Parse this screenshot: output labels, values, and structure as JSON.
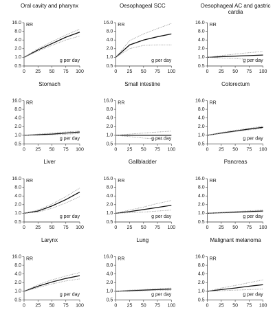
{
  "chart_data": [
    {
      "type": "line",
      "title": "Oral cavity and pharynx",
      "ylabel": "RR",
      "xlabel": "g per day",
      "yscale": "log",
      "x": [
        0,
        25,
        50,
        75,
        100
      ],
      "xlim": [
        0,
        100
      ],
      "xticks": [
        0,
        25,
        50,
        75,
        100
      ],
      "ylim": [
        0.5,
        16
      ],
      "yticks": [
        0.5,
        {
          "value": 1,
          "label": "1.0"
        },
        {
          "value": 2,
          "label": "2.0"
        },
        {
          "value": 4,
          "label": "4.0"
        },
        {
          "value": 8,
          "label": "8.0"
        },
        {
          "value": 16,
          "label": "16.0"
        }
      ],
      "series": [
        {
          "color": "#111111",
          "dash": "solid",
          "values": [
            1,
            1.8,
            3.0,
            5.0,
            7.5
          ]
        },
        {
          "color": "#999999",
          "dash": "dotted",
          "values": [
            1,
            1.65,
            2.6,
            4.0,
            5.5
          ]
        },
        {
          "color": "#999999",
          "dash": "dotted",
          "values": [
            1,
            2.0,
            3.5,
            6.0,
            9.5
          ]
        }
      ]
    },
    {
      "type": "line",
      "title": "Oesophageal SCC",
      "ylabel": "RR",
      "xlabel": "g per day",
      "yscale": "log",
      "x": [
        0,
        25,
        50,
        75,
        100
      ],
      "xlim": [
        0,
        100
      ],
      "xticks": [
        0,
        25,
        50,
        75,
        100
      ],
      "ylim": [
        0.5,
        16
      ],
      "yticks": [
        0.5,
        {
          "value": 1,
          "label": "1.0"
        },
        {
          "value": 2,
          "label": "2.0"
        },
        {
          "value": 4,
          "label": "4.0"
        },
        {
          "value": 8,
          "label": "8.0"
        },
        {
          "value": 16,
          "label": "16.0"
        }
      ],
      "series": [
        {
          "color": "#111111",
          "dash": "solid",
          "values": [
            1,
            2.7,
            4.0,
            5.2,
            6.5
          ]
        },
        {
          "color": "#999999",
          "dash": "dotted",
          "values": [
            1,
            2.0,
            2.6,
            2.7,
            2.7
          ]
        },
        {
          "color": "#999999",
          "dash": "dotted",
          "values": [
            1,
            3.8,
            6.5,
            10,
            15
          ]
        }
      ]
    },
    {
      "type": "line",
      "title": "Oesophageal AC and gastric cardia",
      "ylabel": "RR",
      "xlabel": "g per day",
      "yscale": "log",
      "x": [
        0,
        25,
        50,
        75,
        100
      ],
      "xlim": [
        0,
        100
      ],
      "xticks": [
        0,
        25,
        50,
        75,
        100
      ],
      "ylim": [
        0.5,
        16
      ],
      "yticks": [
        0.5,
        {
          "value": 1,
          "label": "1.0"
        },
        {
          "value": 2,
          "label": "2.0"
        },
        {
          "value": 4,
          "label": "4.0"
        },
        {
          "value": 8,
          "label": "8.0"
        },
        {
          "value": 16,
          "label": "16.0"
        }
      ],
      "series": [
        {
          "color": "#111111",
          "dash": "solid",
          "values": [
            1,
            1.05,
            1.1,
            1.15,
            1.2
          ]
        },
        {
          "color": "#999999",
          "dash": "dotted",
          "values": [
            1,
            0.95,
            0.9,
            0.85,
            0.8
          ]
        },
        {
          "color": "#999999",
          "dash": "dotted",
          "values": [
            1,
            1.15,
            1.3,
            1.45,
            1.6
          ]
        }
      ]
    },
    {
      "type": "line",
      "title": "Stomach",
      "ylabel": "RR",
      "xlabel": "g per day",
      "yscale": "log",
      "x": [
        0,
        25,
        50,
        75,
        100
      ],
      "xlim": [
        0,
        100
      ],
      "xticks": [
        0,
        25,
        50,
        75,
        100
      ],
      "ylim": [
        0.5,
        16
      ],
      "yticks": [
        0.5,
        {
          "value": 1,
          "label": "1.0"
        },
        {
          "value": 2,
          "label": "2.0"
        },
        {
          "value": 4,
          "label": "4.0"
        },
        {
          "value": 8,
          "label": "8.0"
        },
        {
          "value": 16,
          "label": "16.0"
        }
      ],
      "series": [
        {
          "color": "#111111",
          "dash": "solid",
          "values": [
            1,
            1.05,
            1.1,
            1.2,
            1.3
          ]
        },
        {
          "color": "#999999",
          "dash": "dotted",
          "values": [
            1,
            1.0,
            1.05,
            1.1,
            1.15
          ]
        },
        {
          "color": "#999999",
          "dash": "dotted",
          "values": [
            1,
            1.1,
            1.2,
            1.3,
            1.4
          ]
        }
      ]
    },
    {
      "type": "line",
      "title": "Small intestine",
      "ylabel": "RR",
      "xlabel": "g per day",
      "yscale": "log",
      "x": [
        0,
        25,
        50,
        75,
        100
      ],
      "xlim": [
        0,
        100
      ],
      "xticks": [
        0,
        25,
        50,
        75,
        100
      ],
      "ylim": [
        0.5,
        16
      ],
      "yticks": [
        0.5,
        {
          "value": 1,
          "label": "1.0"
        },
        {
          "value": 2,
          "label": "2.0"
        },
        {
          "value": 4,
          "label": "4.0"
        },
        {
          "value": 8,
          "label": "8.0"
        },
        {
          "value": 16,
          "label": "16.0"
        }
      ],
      "series": [
        {
          "color": "#111111",
          "dash": "solid",
          "values": [
            1,
            1,
            1,
            1,
            1
          ]
        },
        {
          "color": "#999999",
          "dash": "dotted",
          "values": [
            1,
            0.9,
            0.8,
            0.75,
            0.7
          ]
        },
        {
          "color": "#999999",
          "dash": "dotted",
          "values": [
            1,
            1.1,
            1.2,
            1.3,
            1.4
          ]
        }
      ]
    },
    {
      "type": "line",
      "title": "Colorectum",
      "ylabel": "RR",
      "xlabel": "g per day",
      "yscale": "log",
      "x": [
        0,
        25,
        50,
        75,
        100
      ],
      "xlim": [
        0,
        100
      ],
      "xticks": [
        0,
        25,
        50,
        75,
        100
      ],
      "ylim": [
        0.5,
        16
      ],
      "yticks": [
        0.5,
        {
          "value": 1,
          "label": "1.0"
        },
        {
          "value": 2,
          "label": "2.0"
        },
        {
          "value": 4,
          "label": "4.0"
        },
        {
          "value": 8,
          "label": "8.0"
        },
        {
          "value": 16,
          "label": "16.0"
        }
      ],
      "series": [
        {
          "color": "#111111",
          "dash": "solid",
          "values": [
            1,
            1.2,
            1.4,
            1.65,
            1.9
          ]
        },
        {
          "color": "#999999",
          "dash": "dotted",
          "values": [
            1,
            1.15,
            1.35,
            1.55,
            1.75
          ]
        },
        {
          "color": "#999999",
          "dash": "dotted",
          "values": [
            1,
            1.25,
            1.5,
            1.75,
            2.1
          ]
        }
      ]
    },
    {
      "type": "line",
      "title": "Liver",
      "ylabel": "RR",
      "xlabel": "g per day",
      "yscale": "log",
      "x": [
        0,
        25,
        50,
        75,
        100
      ],
      "xlim": [
        0,
        100
      ],
      "xticks": [
        0,
        25,
        50,
        75,
        100
      ],
      "ylim": [
        0.5,
        16
      ],
      "yticks": [
        0.5,
        {
          "value": 1,
          "label": "1.0"
        },
        {
          "value": 2,
          "label": "2.0"
        },
        {
          "value": 4,
          "label": "4.0"
        },
        {
          "value": 8,
          "label": "8.0"
        },
        {
          "value": 16,
          "label": "16.0"
        }
      ],
      "series": [
        {
          "color": "#111111",
          "dash": "solid",
          "values": [
            1,
            1.2,
            1.8,
            3.0,
            5.5
          ]
        },
        {
          "color": "#999999",
          "dash": "dotted",
          "values": [
            1,
            1.1,
            1.5,
            2.3,
            3.8
          ]
        },
        {
          "color": "#999999",
          "dash": "dotted",
          "values": [
            1,
            1.3,
            2.1,
            3.8,
            7.5
          ]
        }
      ]
    },
    {
      "type": "line",
      "title": "Gallbladder",
      "ylabel": "RR",
      "xlabel": "g per day",
      "yscale": "log",
      "x": [
        0,
        25,
        50,
        75,
        100
      ],
      "xlim": [
        0,
        100
      ],
      "xticks": [
        0,
        25,
        50,
        75,
        100
      ],
      "ylim": [
        0.5,
        16
      ],
      "yticks": [
        0.5,
        {
          "value": 1,
          "label": "1.0"
        },
        {
          "value": 2,
          "label": "2.0"
        },
        {
          "value": 4,
          "label": "4.0"
        },
        {
          "value": 8,
          "label": "8.0"
        },
        {
          "value": 16,
          "label": "16.0"
        }
      ],
      "series": [
        {
          "color": "#111111",
          "dash": "solid",
          "values": [
            1,
            1.15,
            1.35,
            1.6,
            1.9
          ]
        },
        {
          "color": "#999999",
          "dash": "dotted",
          "values": [
            1,
            1.05,
            1.1,
            1.2,
            1.3
          ]
        },
        {
          "color": "#999999",
          "dash": "dotted",
          "values": [
            1,
            1.3,
            1.65,
            2.2,
            2.8
          ]
        }
      ]
    },
    {
      "type": "line",
      "title": "Pancreas",
      "ylabel": "RR",
      "xlabel": "g per day",
      "yscale": "log",
      "x": [
        0,
        25,
        50,
        75,
        100
      ],
      "xlim": [
        0,
        100
      ],
      "xticks": [
        0,
        25,
        50,
        75,
        100
      ],
      "ylim": [
        0.5,
        16
      ],
      "yticks": [
        0.5,
        {
          "value": 1,
          "label": "1.0"
        },
        {
          "value": 2,
          "label": "2.0"
        },
        {
          "value": 4,
          "label": "4.0"
        },
        {
          "value": 8,
          "label": "8.0"
        },
        {
          "value": 16,
          "label": "16.0"
        }
      ],
      "series": [
        {
          "color": "#111111",
          "dash": "solid",
          "values": [
            1,
            1.05,
            1.1,
            1.15,
            1.2
          ]
        },
        {
          "color": "#999999",
          "dash": "dotted",
          "values": [
            1,
            1.02,
            1.05,
            1.1,
            1.15
          ]
        },
        {
          "color": "#999999",
          "dash": "dotted",
          "values": [
            1,
            1.08,
            1.15,
            1.22,
            1.3
          ]
        }
      ]
    },
    {
      "type": "line",
      "title": "Larynx",
      "ylabel": "RR",
      "xlabel": "g per day",
      "yscale": "log",
      "x": [
        0,
        25,
        50,
        75,
        100
      ],
      "xlim": [
        0,
        100
      ],
      "xticks": [
        0,
        25,
        50,
        75,
        100
      ],
      "ylim": [
        0.5,
        16
      ],
      "yticks": [
        0.5,
        {
          "value": 1,
          "label": "1.0"
        },
        {
          "value": 2,
          "label": "2.0"
        },
        {
          "value": 4,
          "label": "4.0"
        },
        {
          "value": 8,
          "label": "8.0"
        },
        {
          "value": 16,
          "label": "16.0"
        }
      ],
      "series": [
        {
          "color": "#111111",
          "dash": "solid",
          "values": [
            1,
            1.5,
            2.1,
            2.8,
            3.5
          ]
        },
        {
          "color": "#999999",
          "dash": "dotted",
          "values": [
            1,
            1.35,
            1.8,
            2.3,
            2.7
          ]
        },
        {
          "color": "#999999",
          "dash": "dotted",
          "values": [
            1,
            1.7,
            2.5,
            3.4,
            4.5
          ]
        }
      ]
    },
    {
      "type": "line",
      "title": "Lung",
      "ylabel": "RR",
      "xlabel": "g per day",
      "yscale": "log",
      "x": [
        0,
        25,
        50,
        75,
        100
      ],
      "xlim": [
        0,
        100
      ],
      "xticks": [
        0,
        25,
        50,
        75,
        100
      ],
      "ylim": [
        0.5,
        16
      ],
      "yticks": [
        0.5,
        {
          "value": 1,
          "label": "1.0"
        },
        {
          "value": 2,
          "label": "2.0"
        },
        {
          "value": 4,
          "label": "4.0"
        },
        {
          "value": 8,
          "label": "8.0"
        },
        {
          "value": 16,
          "label": "16.0"
        }
      ],
      "series": [
        {
          "color": "#111111",
          "dash": "solid",
          "values": [
            1,
            1.05,
            1.1,
            1.15,
            1.2
          ]
        },
        {
          "color": "#999999",
          "dash": "dotted",
          "values": [
            1,
            1.0,
            1.05,
            1.1,
            1.1
          ]
        },
        {
          "color": "#999999",
          "dash": "dotted",
          "values": [
            1,
            1.1,
            1.15,
            1.22,
            1.3
          ]
        }
      ]
    },
    {
      "type": "line",
      "title": "Malignant melanoma",
      "ylabel": "RR",
      "xlabel": "g per day",
      "yscale": "log",
      "x": [
        0,
        25,
        50,
        75,
        100
      ],
      "xlim": [
        0,
        100
      ],
      "xticks": [
        0,
        25,
        50,
        75,
        100
      ],
      "ylim": [
        0.5,
        16
      ],
      "yticks": [
        0.5,
        {
          "value": 1,
          "label": "1.0"
        },
        {
          "value": 2,
          "label": "2.0"
        },
        {
          "value": 4,
          "label": "4.0"
        },
        {
          "value": 8,
          "label": "8.0"
        },
        {
          "value": 16,
          "label": "16.0"
        }
      ],
      "series": [
        {
          "color": "#111111",
          "dash": "solid",
          "values": [
            1,
            1.15,
            1.3,
            1.5,
            1.7
          ]
        },
        {
          "color": "#999999",
          "dash": "dotted",
          "values": [
            1,
            1.05,
            1.1,
            1.15,
            1.2
          ]
        },
        {
          "color": "#999999",
          "dash": "dotted",
          "values": [
            1,
            1.3,
            1.6,
            2.0,
            2.5
          ]
        }
      ]
    }
  ]
}
